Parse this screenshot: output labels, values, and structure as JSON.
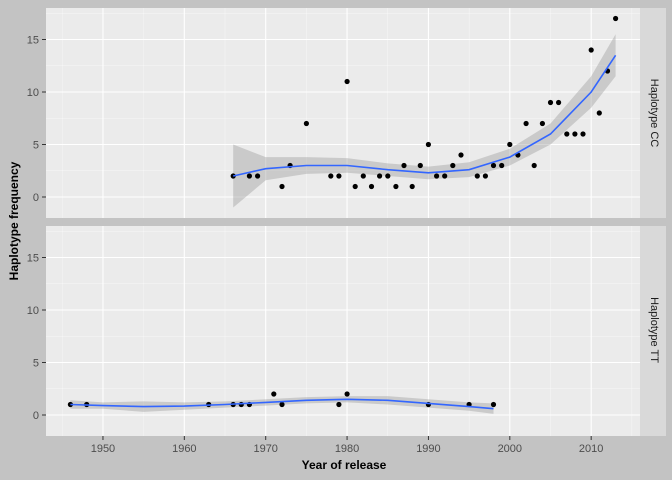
{
  "chart_data": {
    "type": "scatter",
    "xlabel": "Year of release",
    "ylabel": "Haplotype frequency",
    "xlim": [
      1943,
      2016
    ],
    "ylim": [
      -2,
      18
    ],
    "x_ticks": [
      1950,
      1960,
      1970,
      1980,
      1990,
      2000,
      2010
    ],
    "y_ticks": [
      0,
      5,
      10,
      15
    ],
    "grid": true,
    "colors": {
      "figure_bg": "#c3c3c3",
      "panel_bg": "#ebebeb",
      "strip_bg": "#d9d9d9",
      "grid": "#ffffff",
      "points": "#000000",
      "smooth_line": "#3366ff",
      "ribbon": "#999999"
    },
    "panels": [
      {
        "strip": "Haplotype CC",
        "points": [
          [
            1966,
            2
          ],
          [
            1968,
            2
          ],
          [
            1969,
            2
          ],
          [
            1972,
            1
          ],
          [
            1973,
            3
          ],
          [
            1975,
            7
          ],
          [
            1978,
            2
          ],
          [
            1979,
            2
          ],
          [
            1980,
            11
          ],
          [
            1981,
            1
          ],
          [
            1982,
            2
          ],
          [
            1983,
            1
          ],
          [
            1984,
            2
          ],
          [
            1985,
            2
          ],
          [
            1986,
            1
          ],
          [
            1987,
            3
          ],
          [
            1988,
            1
          ],
          [
            1989,
            3
          ],
          [
            1990,
            5
          ],
          [
            1991,
            2
          ],
          [
            1992,
            2
          ],
          [
            1993,
            3
          ],
          [
            1994,
            4
          ],
          [
            1996,
            2
          ],
          [
            1997,
            2
          ],
          [
            1998,
            3
          ],
          [
            1999,
            3
          ],
          [
            2000,
            5
          ],
          [
            2001,
            4
          ],
          [
            2002,
            7
          ],
          [
            2003,
            3
          ],
          [
            2004,
            7
          ],
          [
            2005,
            9
          ],
          [
            2006,
            9
          ],
          [
            2007,
            6
          ],
          [
            2008,
            6
          ],
          [
            2009,
            6
          ],
          [
            2010,
            14
          ],
          [
            2011,
            8
          ],
          [
            2012,
            12
          ],
          [
            2013,
            17
          ]
        ],
        "smooth": {
          "x": [
            1966,
            1970,
            1975,
            1980,
            1985,
            1990,
            1995,
            2000,
            2005,
            2010,
            2013
          ],
          "y": [
            2.0,
            2.7,
            3.0,
            3.0,
            2.6,
            2.3,
            2.6,
            3.8,
            6.0,
            10.0,
            13.5
          ],
          "lower": [
            -1.0,
            1.6,
            2.2,
            2.3,
            2.0,
            1.7,
            1.9,
            3.0,
            5.0,
            8.5,
            11.5
          ],
          "upper": [
            5.0,
            3.8,
            3.8,
            3.7,
            3.2,
            2.9,
            3.3,
            4.6,
            7.0,
            11.5,
            15.5
          ]
        }
      },
      {
        "strip": "Haplotype TT",
        "points": [
          [
            1946,
            1
          ],
          [
            1948,
            1
          ],
          [
            1963,
            1
          ],
          [
            1966,
            1
          ],
          [
            1967,
            1
          ],
          [
            1968,
            1
          ],
          [
            1971,
            2
          ],
          [
            1972,
            1
          ],
          [
            1979,
            1
          ],
          [
            1980,
            2
          ],
          [
            1990,
            1
          ],
          [
            1995,
            1
          ],
          [
            1998,
            1
          ]
        ],
        "smooth": {
          "x": [
            1946,
            1950,
            1955,
            1960,
            1965,
            1970,
            1975,
            1980,
            1985,
            1990,
            1995,
            1998
          ],
          "y": [
            1.0,
            0.9,
            0.8,
            0.85,
            1.0,
            1.2,
            1.4,
            1.5,
            1.4,
            1.1,
            0.8,
            0.6
          ],
          "lower": [
            0.6,
            0.6,
            0.3,
            0.5,
            0.7,
            0.9,
            1.1,
            1.2,
            1.0,
            0.7,
            0.4,
            0.1
          ],
          "upper": [
            1.4,
            1.2,
            1.3,
            1.2,
            1.3,
            1.5,
            1.7,
            1.8,
            1.8,
            1.5,
            1.2,
            1.1
          ]
        }
      }
    ]
  }
}
